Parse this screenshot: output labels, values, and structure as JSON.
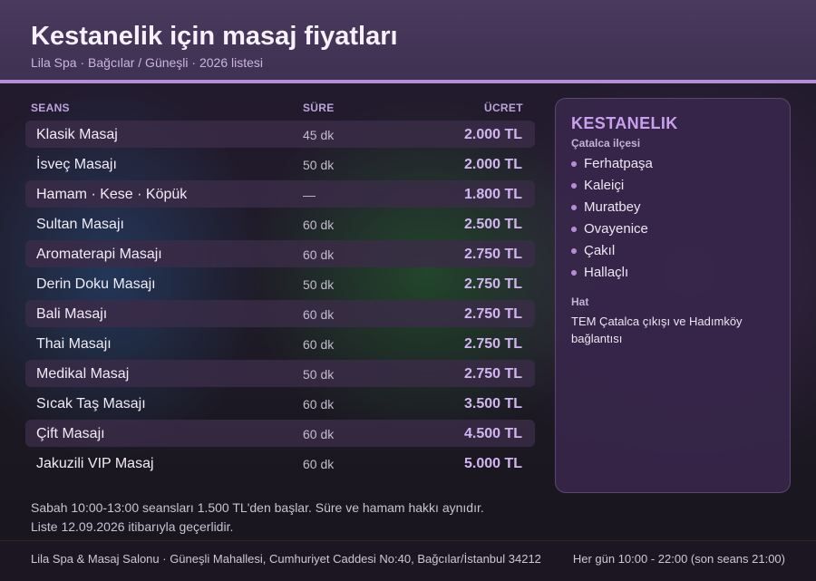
{
  "header": {
    "title": "Kestanelik için masaj fiyatları",
    "subtitle": "Lila Spa · Bağcılar / Güneşli · 2026 listesi"
  },
  "table": {
    "columns": {
      "name": "SEANS",
      "duration": "SÜRE",
      "price": "ÜCRET"
    },
    "rows": [
      {
        "name": "Klasik Masaj",
        "duration": "45 dk",
        "price": "2.000 TL"
      },
      {
        "name": "İsveç Masajı",
        "duration": "50 dk",
        "price": "2.000 TL"
      },
      {
        "name": "Hamam · Kese · Köpük",
        "duration": "—",
        "price": "1.800 TL"
      },
      {
        "name": "Sultan Masajı",
        "duration": "60 dk",
        "price": "2.500 TL"
      },
      {
        "name": "Aromaterapi Masajı",
        "duration": "60 dk",
        "price": "2.750 TL"
      },
      {
        "name": "Derin Doku Masajı",
        "duration": "50 dk",
        "price": "2.750 TL"
      },
      {
        "name": "Bali Masajı",
        "duration": "60 dk",
        "price": "2.750 TL"
      },
      {
        "name": "Thai Masajı",
        "duration": "60 dk",
        "price": "2.750 TL"
      },
      {
        "name": "Medikal Masaj",
        "duration": "50 dk",
        "price": "2.750 TL"
      },
      {
        "name": "Sıcak Taş Masajı",
        "duration": "60 dk",
        "price": "3.500 TL"
      },
      {
        "name": "Çift Masajı",
        "duration": "60 dk",
        "price": "4.500 TL"
      },
      {
        "name": "Jakuzili VIP Masaj",
        "duration": "60 dk",
        "price": "5.000 TL"
      }
    ]
  },
  "sidebar": {
    "title": "KESTANELIK",
    "subtitle": "Çatalca ilçesi",
    "places": [
      "Ferhatpaşa",
      "Kaleiçi",
      "Muratbey",
      "Ovayenice",
      "Çakıl",
      "Hallaçlı"
    ],
    "route_label": "Hat",
    "route_text": "TEM Çatalca çıkışı ve Hadımköy bağlantısı"
  },
  "notes": {
    "line1": "Sabah 10:00-13:00 seansları 1.500 TL'den başlar. Süre ve hamam hakkı aynıdır.",
    "line2": "Liste 12.09.2026 itibarıyla geçerlidir."
  },
  "footer": {
    "address": "Lila Spa & Masaj Salonu · Güneşli Mahallesi, Cumhuriyet Caddesi No:40, Bağcılar/İstanbul 34212",
    "hours": "Her gün 10:00 - 22:00 (son seans 21:00)"
  },
  "colors": {
    "accent": "#b48fd8",
    "price": "#d3b5f2",
    "header_bg": "#4a3a5e"
  }
}
